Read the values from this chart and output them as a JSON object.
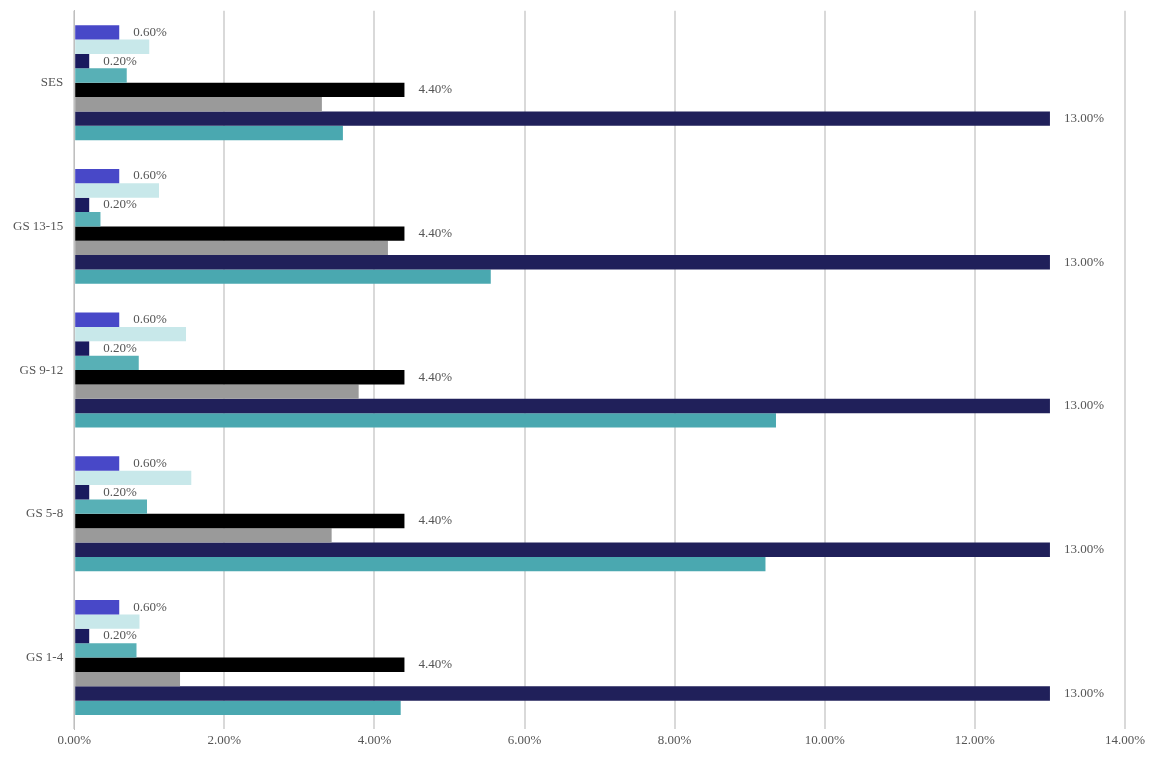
{
  "chart_data": {
    "type": "bar",
    "orientation": "horizontal",
    "categories": [
      "SES",
      "GS 13-15",
      "GS 9-12",
      "GS 5-8",
      "GS 1-4"
    ],
    "series": [
      {
        "color": "#4848c8",
        "values": [
          0.6,
          0.6,
          0.6,
          0.6,
          0.6
        ],
        "value_labels": [
          "0.60%",
          "0.60%",
          "0.60%",
          "0.60%",
          "0.60%"
        ]
      },
      {
        "color": "#c8e8ea",
        "values": [
          1.0,
          1.13,
          1.49,
          1.56,
          0.87
        ]
      },
      {
        "color": "#1a1a5e",
        "values": [
          0.2,
          0.2,
          0.2,
          0.2,
          0.2
        ],
        "value_labels": [
          "0.20%",
          "0.20%",
          "0.20%",
          "0.20%",
          "0.20%"
        ]
      },
      {
        "color": "#58b0b6",
        "values": [
          0.7,
          0.35,
          0.86,
          0.97,
          0.83
        ]
      },
      {
        "color": "#000000",
        "values": [
          4.4,
          4.4,
          4.4,
          4.4,
          4.4
        ],
        "value_labels": [
          "4.40%",
          "4.40%",
          "4.40%",
          "4.40%",
          "4.40%"
        ]
      },
      {
        "color": "#9a9a9a",
        "values": [
          3.3,
          4.18,
          3.79,
          3.43,
          1.41
        ]
      },
      {
        "color": "#20205a",
        "values": [
          13.0,
          13.0,
          13.0,
          13.0,
          13.0
        ],
        "value_labels": [
          "13.00%",
          "13.00%",
          "13.00%",
          "13.00%",
          "13.00%"
        ]
      },
      {
        "color": "#4aa8b0",
        "values": [
          3.58,
          5.55,
          9.35,
          9.21,
          4.35
        ]
      }
    ],
    "xlim": [
      0,
      14
    ],
    "xticks": [
      {
        "value": 0,
        "label": "0.00%"
      },
      {
        "value": 2,
        "label": "2.00%"
      },
      {
        "value": 4,
        "label": "4.00%"
      },
      {
        "value": 6,
        "label": "6.00%"
      },
      {
        "value": 8,
        "label": "8.00%"
      },
      {
        "value": 10,
        "label": "10.00%"
      },
      {
        "value": 12,
        "label": "12.00%"
      },
      {
        "value": 14,
        "label": "14.00%"
      }
    ],
    "grid": "x",
    "legend": false
  }
}
